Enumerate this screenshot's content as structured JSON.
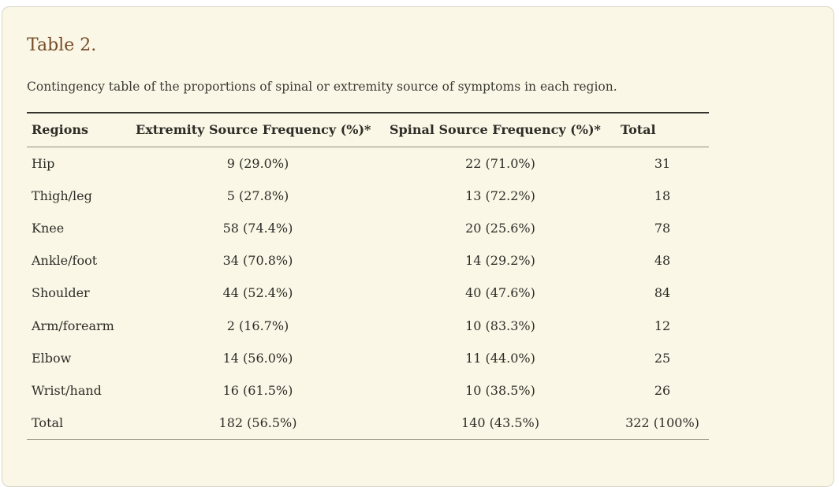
{
  "title": "Table 2.",
  "caption": "Contingency table of the proportions of spinal or extremity source of symptoms in each region.",
  "colors": {
    "card_background": "#fbf7e6",
    "card_border": "#d8d5c9",
    "title_text": "#764c28",
    "body_text": "#2d2c27",
    "rule_dark": "#33322c",
    "rule_light": "#8f8d81"
  },
  "table": {
    "headers": [
      "Regions",
      "Extremity Source Frequency (%)*",
      "Spinal Source Frequency (%)*",
      "Total"
    ],
    "rows": [
      [
        "Hip",
        "9 (29.0%)",
        "22 (71.0%)",
        "31"
      ],
      [
        "Thigh/leg",
        "5 (27.8%)",
        "13 (72.2%)",
        "18"
      ],
      [
        "Knee",
        "58 (74.4%)",
        "20 (25.6%)",
        "78"
      ],
      [
        "Ankle/foot",
        "34 (70.8%)",
        "14 (29.2%)",
        "48"
      ],
      [
        "Shoulder",
        "44 (52.4%)",
        "40 (47.6%)",
        "84"
      ],
      [
        "Arm/forearm",
        "2 (16.7%)",
        "10 (83.3%)",
        "12"
      ],
      [
        "Elbow",
        "14 (56.0%)",
        "11 (44.0%)",
        "25"
      ],
      [
        "Wrist/hand",
        "16 (61.5%)",
        "10 (38.5%)",
        "26"
      ],
      [
        "Total",
        "182 (56.5%)",
        "140 (43.5%)",
        "322 (100%)"
      ]
    ]
  }
}
